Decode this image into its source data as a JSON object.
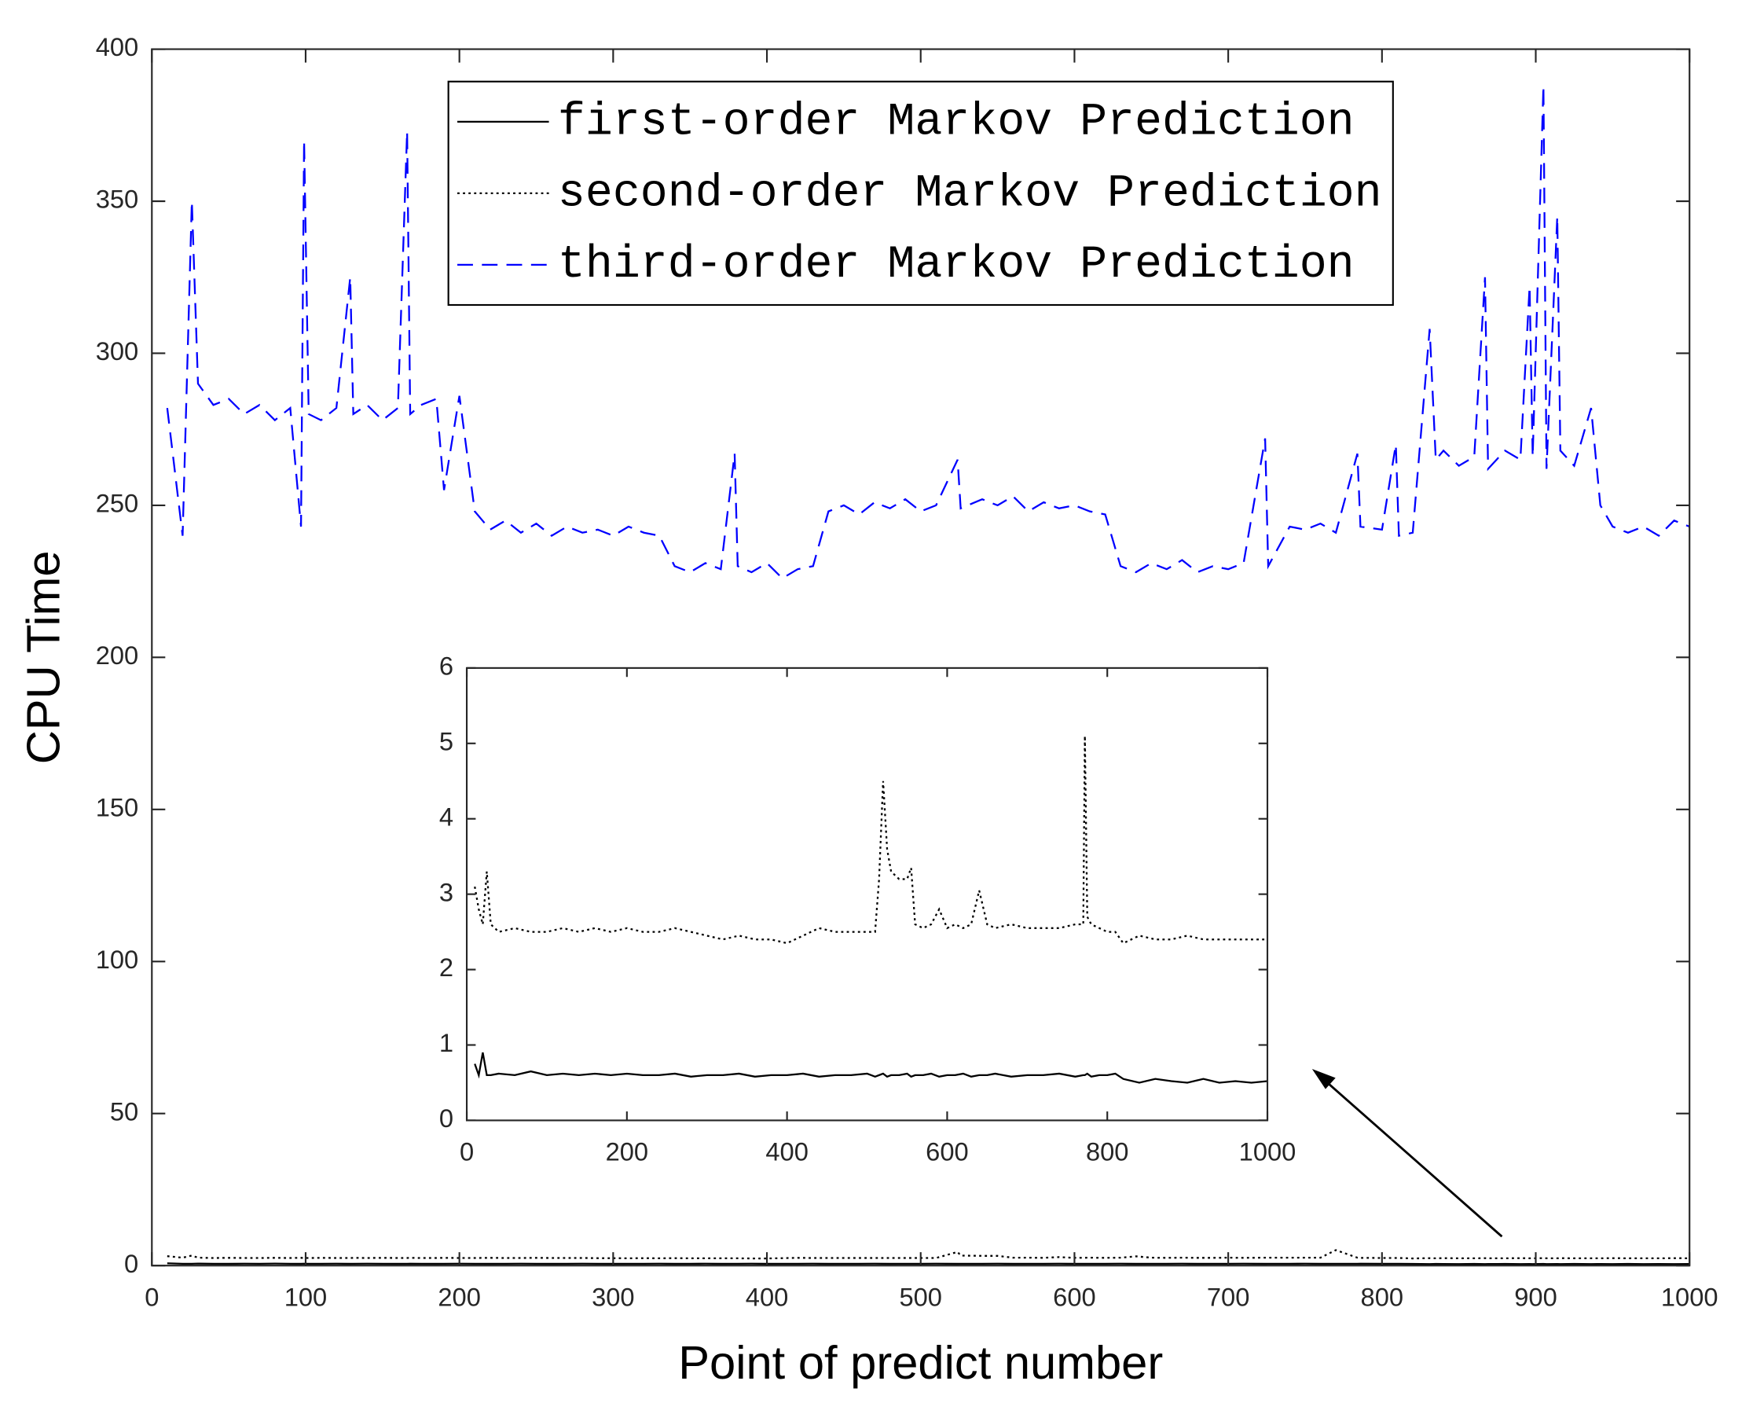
{
  "chart_data": [
    {
      "type": "line",
      "x_label": "Point of predict number",
      "y_label": "CPU Time",
      "xlim": [
        0,
        1000
      ],
      "ylim": [
        0,
        400
      ],
      "xticks": [
        0,
        100,
        200,
        300,
        400,
        500,
        600,
        700,
        800,
        900,
        1000
      ],
      "yticks": [
        0,
        50,
        100,
        150,
        200,
        250,
        300,
        350,
        400
      ],
      "legend": "upper center",
      "x": [
        10,
        20,
        26,
        30,
        40,
        50,
        60,
        70,
        80,
        90,
        97,
        99,
        102,
        110,
        120,
        129,
        131,
        140,
        150,
        160,
        166,
        168,
        175,
        185,
        190,
        200,
        210,
        220,
        230,
        240,
        250,
        260,
        270,
        280,
        290,
        300,
        310,
        320,
        330,
        340,
        350,
        360,
        370,
        379,
        381,
        390,
        400,
        410,
        420,
        430,
        440,
        450,
        460,
        470,
        480,
        490,
        500,
        510,
        524,
        526,
        540,
        550,
        560,
        570,
        580,
        590,
        600,
        610,
        620,
        630,
        640,
        650,
        660,
        670,
        680,
        690,
        700,
        710,
        724,
        726,
        740,
        750,
        760,
        770,
        784,
        786,
        800,
        809,
        811,
        820,
        831,
        835,
        840,
        850,
        860,
        867,
        869,
        880,
        890,
        896,
        898,
        905,
        907,
        914,
        916,
        925,
        936,
        942,
        950,
        960,
        970,
        980,
        990,
        1000
      ],
      "series": [
        {
          "name": "first-order Markov Prediction",
          "color": "#000000",
          "linestyle": "solid",
          "values": [
            0.75,
            0.6,
            0.6,
            0.65,
            0.6,
            0.58,
            0.62,
            0.6,
            0.65,
            0.6,
            0.58,
            0.62,
            0.6,
            0.6,
            0.62,
            0.58,
            0.6,
            0.62,
            0.6,
            0.58,
            0.6,
            0.62,
            0.6,
            0.58,
            0.6,
            0.62,
            0.6,
            0.58,
            0.6,
            0.62,
            0.6,
            0.58,
            0.6,
            0.62,
            0.6,
            0.58,
            0.6,
            0.6,
            0.62,
            0.58,
            0.6,
            0.62,
            0.58,
            0.6,
            0.6,
            0.62,
            0.58,
            0.6,
            0.6,
            0.62,
            0.58,
            0.6,
            0.6,
            0.62,
            0.58,
            0.6,
            0.6,
            0.62,
            0.58,
            0.6,
            0.6,
            0.62,
            0.58,
            0.6,
            0.6,
            0.62,
            0.58,
            0.6,
            0.6,
            0.62,
            0.58,
            0.6,
            0.6,
            0.62,
            0.58,
            0.6,
            0.6,
            0.62,
            0.58,
            0.6,
            0.6,
            0.62,
            0.58,
            0.6,
            0.6,
            0.62,
            0.58,
            0.6,
            0.6,
            0.55,
            0.5,
            0.55,
            0.52,
            0.5,
            0.55,
            0.5,
            0.52,
            0.55,
            0.5,
            0.52,
            0.5,
            0.55,
            0.5,
            0.52,
            0.5,
            0.55,
            0.5,
            0.52,
            0.5,
            0.55,
            0.5,
            0.52,
            0.5,
            0.52
          ]
        },
        {
          "name": "second-order Markov Prediction",
          "color": "#000000",
          "linestyle": "dotted",
          "values": [
            3.1,
            2.6,
            3.3,
            2.6,
            2.5,
            2.55,
            2.5,
            2.5,
            2.55,
            2.5,
            2.55,
            2.5,
            2.5,
            2.55,
            2.5,
            2.5,
            2.55,
            2.5,
            2.55,
            2.5,
            2.5,
            2.55,
            2.5,
            2.5,
            2.55,
            2.5,
            2.5,
            2.55,
            2.5,
            2.5,
            2.55,
            2.5,
            2.5,
            2.5,
            2.45,
            2.45,
            2.4,
            2.45,
            2.4,
            2.45,
            2.4,
            2.4,
            2.4,
            2.4,
            2.4,
            2.35,
            2.35,
            2.45,
            2.55,
            2.5,
            2.5,
            2.5,
            2.5,
            2.5,
            2.5,
            2.5,
            2.5,
            2.5,
            4.5,
            3.3,
            3.2,
            3.2,
            2.6,
            2.6,
            2.55,
            2.8,
            2.55,
            2.6,
            2.55,
            2.6,
            3.05,
            2.6,
            2.55,
            2.6,
            2.55,
            2.55,
            2.6,
            2.55,
            2.6,
            2.6,
            2.6,
            2.6,
            2.6,
            5.1,
            2.6,
            2.55,
            2.5,
            2.5,
            2.5,
            2.35,
            2.45,
            2.4,
            2.45,
            2.4,
            2.4,
            2.45,
            2.4,
            2.4,
            2.45,
            2.4,
            2.4,
            2.45,
            2.4,
            2.4,
            2.45,
            2.4,
            2.4,
            2.4,
            2.45,
            2.4,
            2.4,
            2.4,
            2.45,
            2.4
          ]
        },
        {
          "name": "third-order Markov Prediction",
          "color": "#0000ff",
          "linestyle": "dashed",
          "values": [
            282,
            240,
            350,
            290,
            283,
            285,
            280,
            283,
            278,
            282,
            243,
            370,
            280,
            278,
            282,
            325,
            280,
            283,
            278,
            282,
            373,
            280,
            283,
            285,
            255,
            286,
            248,
            242,
            245,
            241,
            244,
            240,
            243,
            241,
            242,
            240,
            243,
            241,
            240,
            230,
            228,
            231,
            229,
            267,
            230,
            228,
            231,
            226,
            229,
            230,
            248,
            250,
            247,
            251,
            249,
            252,
            248,
            250,
            265,
            249,
            252,
            250,
            253,
            248,
            251,
            249,
            250,
            248,
            247,
            230,
            228,
            231,
            229,
            232,
            228,
            230,
            229,
            231,
            272,
            230,
            243,
            242,
            244,
            241,
            267,
            243,
            242,
            270,
            240,
            241,
            308,
            265,
            268,
            263,
            266,
            325,
            262,
            268,
            265,
            322,
            266,
            388,
            262,
            345,
            268,
            263,
            282,
            250,
            243,
            241,
            243,
            240,
            245,
            243
          ]
        }
      ]
    },
    {
      "type": "line",
      "xlim": [
        0,
        1000
      ],
      "ylim": [
        0,
        6
      ],
      "xticks": [
        0,
        200,
        400,
        600,
        800,
        1000
      ],
      "yticks": [
        0,
        1,
        2,
        3,
        4,
        5,
        6
      ],
      "x": [
        10,
        15,
        20,
        25,
        30,
        40,
        60,
        80,
        100,
        120,
        140,
        160,
        180,
        200,
        220,
        240,
        260,
        280,
        300,
        320,
        340,
        360,
        380,
        400,
        420,
        440,
        460,
        480,
        500,
        510,
        515,
        520,
        525,
        530,
        540,
        550,
        555,
        560,
        570,
        580,
        590,
        600,
        610,
        620,
        630,
        640,
        650,
        660,
        680,
        700,
        720,
        740,
        760,
        770,
        772,
        775,
        780,
        790,
        800,
        810,
        820,
        840,
        860,
        880,
        900,
        920,
        940,
        960,
        980,
        1000
      ],
      "series": [
        {
          "color": "#000000",
          "linestyle": "solid",
          "values": [
            0.75,
            0.6,
            0.9,
            0.6,
            0.6,
            0.62,
            0.6,
            0.65,
            0.6,
            0.62,
            0.6,
            0.62,
            0.6,
            0.62,
            0.6,
            0.6,
            0.62,
            0.58,
            0.6,
            0.6,
            0.62,
            0.58,
            0.6,
            0.6,
            0.62,
            0.58,
            0.6,
            0.6,
            0.62,
            0.58,
            0.6,
            0.62,
            0.58,
            0.6,
            0.6,
            0.62,
            0.58,
            0.6,
            0.6,
            0.62,
            0.58,
            0.6,
            0.6,
            0.62,
            0.58,
            0.6,
            0.6,
            0.62,
            0.58,
            0.6,
            0.6,
            0.62,
            0.58,
            0.6,
            0.6,
            0.62,
            0.58,
            0.6,
            0.6,
            0.62,
            0.55,
            0.5,
            0.55,
            0.52,
            0.5,
            0.55,
            0.5,
            0.52,
            0.5,
            0.52
          ]
        },
        {
          "color": "#000000",
          "linestyle": "dotted",
          "values": [
            3.1,
            2.8,
            2.6,
            3.3,
            2.6,
            2.5,
            2.55,
            2.5,
            2.5,
            2.55,
            2.5,
            2.55,
            2.5,
            2.55,
            2.5,
            2.5,
            2.55,
            2.5,
            2.45,
            2.4,
            2.45,
            2.4,
            2.4,
            2.35,
            2.45,
            2.55,
            2.5,
            2.5,
            2.5,
            2.5,
            3.2,
            4.5,
            3.6,
            3.3,
            3.2,
            3.2,
            3.35,
            2.6,
            2.55,
            2.6,
            2.8,
            2.55,
            2.6,
            2.55,
            2.6,
            3.05,
            2.6,
            2.55,
            2.6,
            2.55,
            2.55,
            2.55,
            2.6,
            2.6,
            5.1,
            2.7,
            2.6,
            2.55,
            2.5,
            2.5,
            2.35,
            2.45,
            2.4,
            2.4,
            2.45,
            2.4,
            2.4,
            2.4,
            2.4,
            2.4
          ]
        }
      ]
    }
  ]
}
